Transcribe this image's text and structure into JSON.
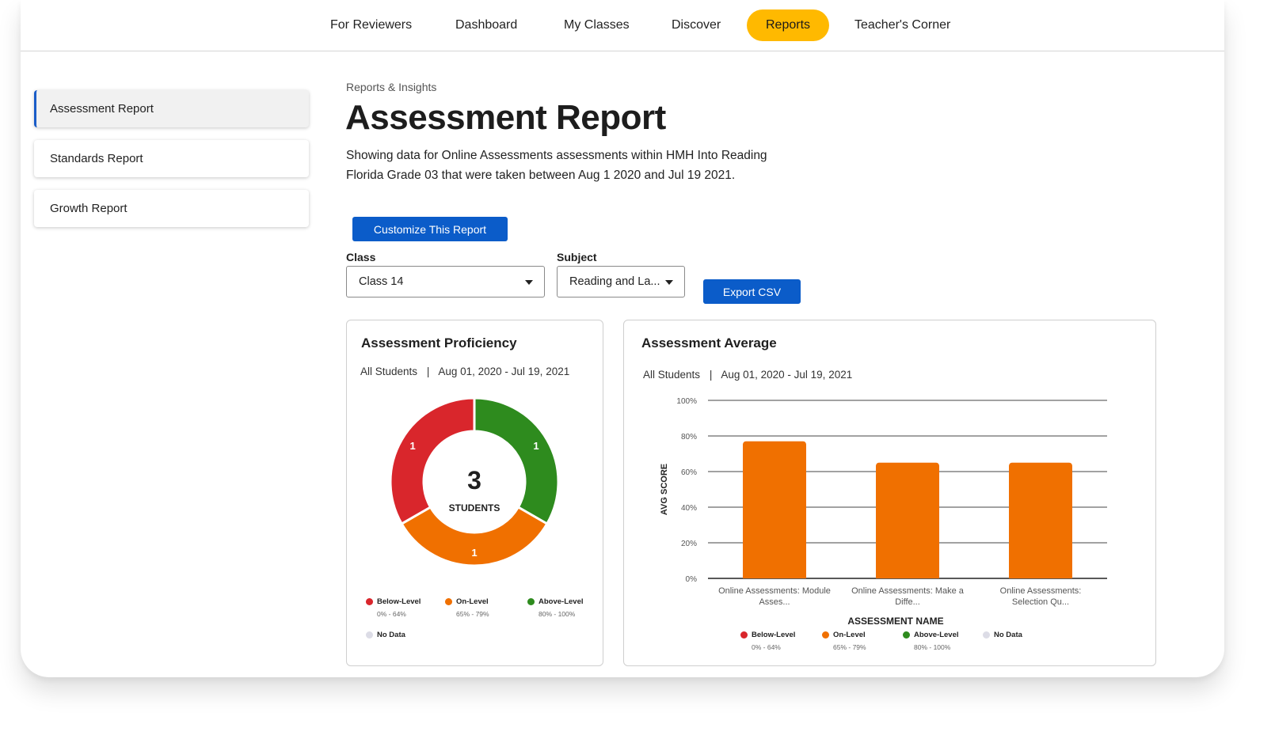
{
  "nav": {
    "items": [
      {
        "label": "For Reviewers"
      },
      {
        "label": "Dashboard"
      },
      {
        "label": "My Classes"
      },
      {
        "label": "Discover"
      },
      {
        "label": "Reports"
      },
      {
        "label": "Teacher's Corner"
      }
    ],
    "active_color": "#ffb900"
  },
  "sidebar": {
    "items": [
      {
        "label": "Assessment Report"
      },
      {
        "label": "Standards Report"
      },
      {
        "label": "Growth Report"
      }
    ]
  },
  "header": {
    "breadcrumb": "Reports & Insights",
    "title": "Assessment Report",
    "description_line1": "Showing data for Online Assessments assessments within HMH Into Reading",
    "description_line2": "Florida Grade 03 that were taken between Aug 1 2020 and Jul 19 2021."
  },
  "controls": {
    "customize_label": "Customize This Report",
    "class_label": "Class",
    "class_value": "Class 14",
    "subject_label": "Subject",
    "subject_value": "Reading and La...",
    "export_label": "Export CSV"
  },
  "legend": [
    {
      "name": "Below-Level",
      "range": "0% - 64%",
      "color": "#d9262c"
    },
    {
      "name": "On-Level",
      "range": "65% - 79%",
      "color": "#f07000"
    },
    {
      "name": "Above-Level",
      "range": "80% - 100%",
      "color": "#2e8b1e"
    },
    {
      "name": "No Data",
      "range": "",
      "color": "#dcdce6"
    }
  ],
  "proficiency": {
    "title": "Assessment Proficiency",
    "filter": "All Students",
    "separator": "|",
    "date_range": "Aug 01, 2020 - Jul 19, 2021",
    "total": "3",
    "total_label": "STUDENTS"
  },
  "average": {
    "title": "Assessment Average",
    "filter": "All Students",
    "separator": "|",
    "date_range": "Aug 01, 2020 - Jul 19, 2021"
  },
  "chart_data": [
    {
      "type": "pie",
      "categories": [
        "Below-Level",
        "On-Level",
        "Above-Level"
      ],
      "values": [
        1,
        1,
        1
      ],
      "colors": [
        "#d9262c",
        "#f07000",
        "#2e8b1e"
      ],
      "title": "Assessment Proficiency"
    },
    {
      "type": "bar",
      "categories": [
        [
          "Online Assessments: Module",
          "Asses..."
        ],
        [
          "Online Assessments: Make a",
          "Diffe..."
        ],
        [
          "Online Assessments:",
          "Selection Qu..."
        ]
      ],
      "values": [
        77,
        65,
        65
      ],
      "color": "#f07000",
      "title": "Assessment Average",
      "xlabel": "ASSESSMENT NAME",
      "ylabel": "AVG SCORE",
      "ylim": [
        0,
        100
      ],
      "yticks": [
        "0%",
        "20%",
        "40%",
        "60%",
        "80%",
        "100%"
      ],
      "grid": true,
      "legend_position": "bottom"
    }
  ]
}
